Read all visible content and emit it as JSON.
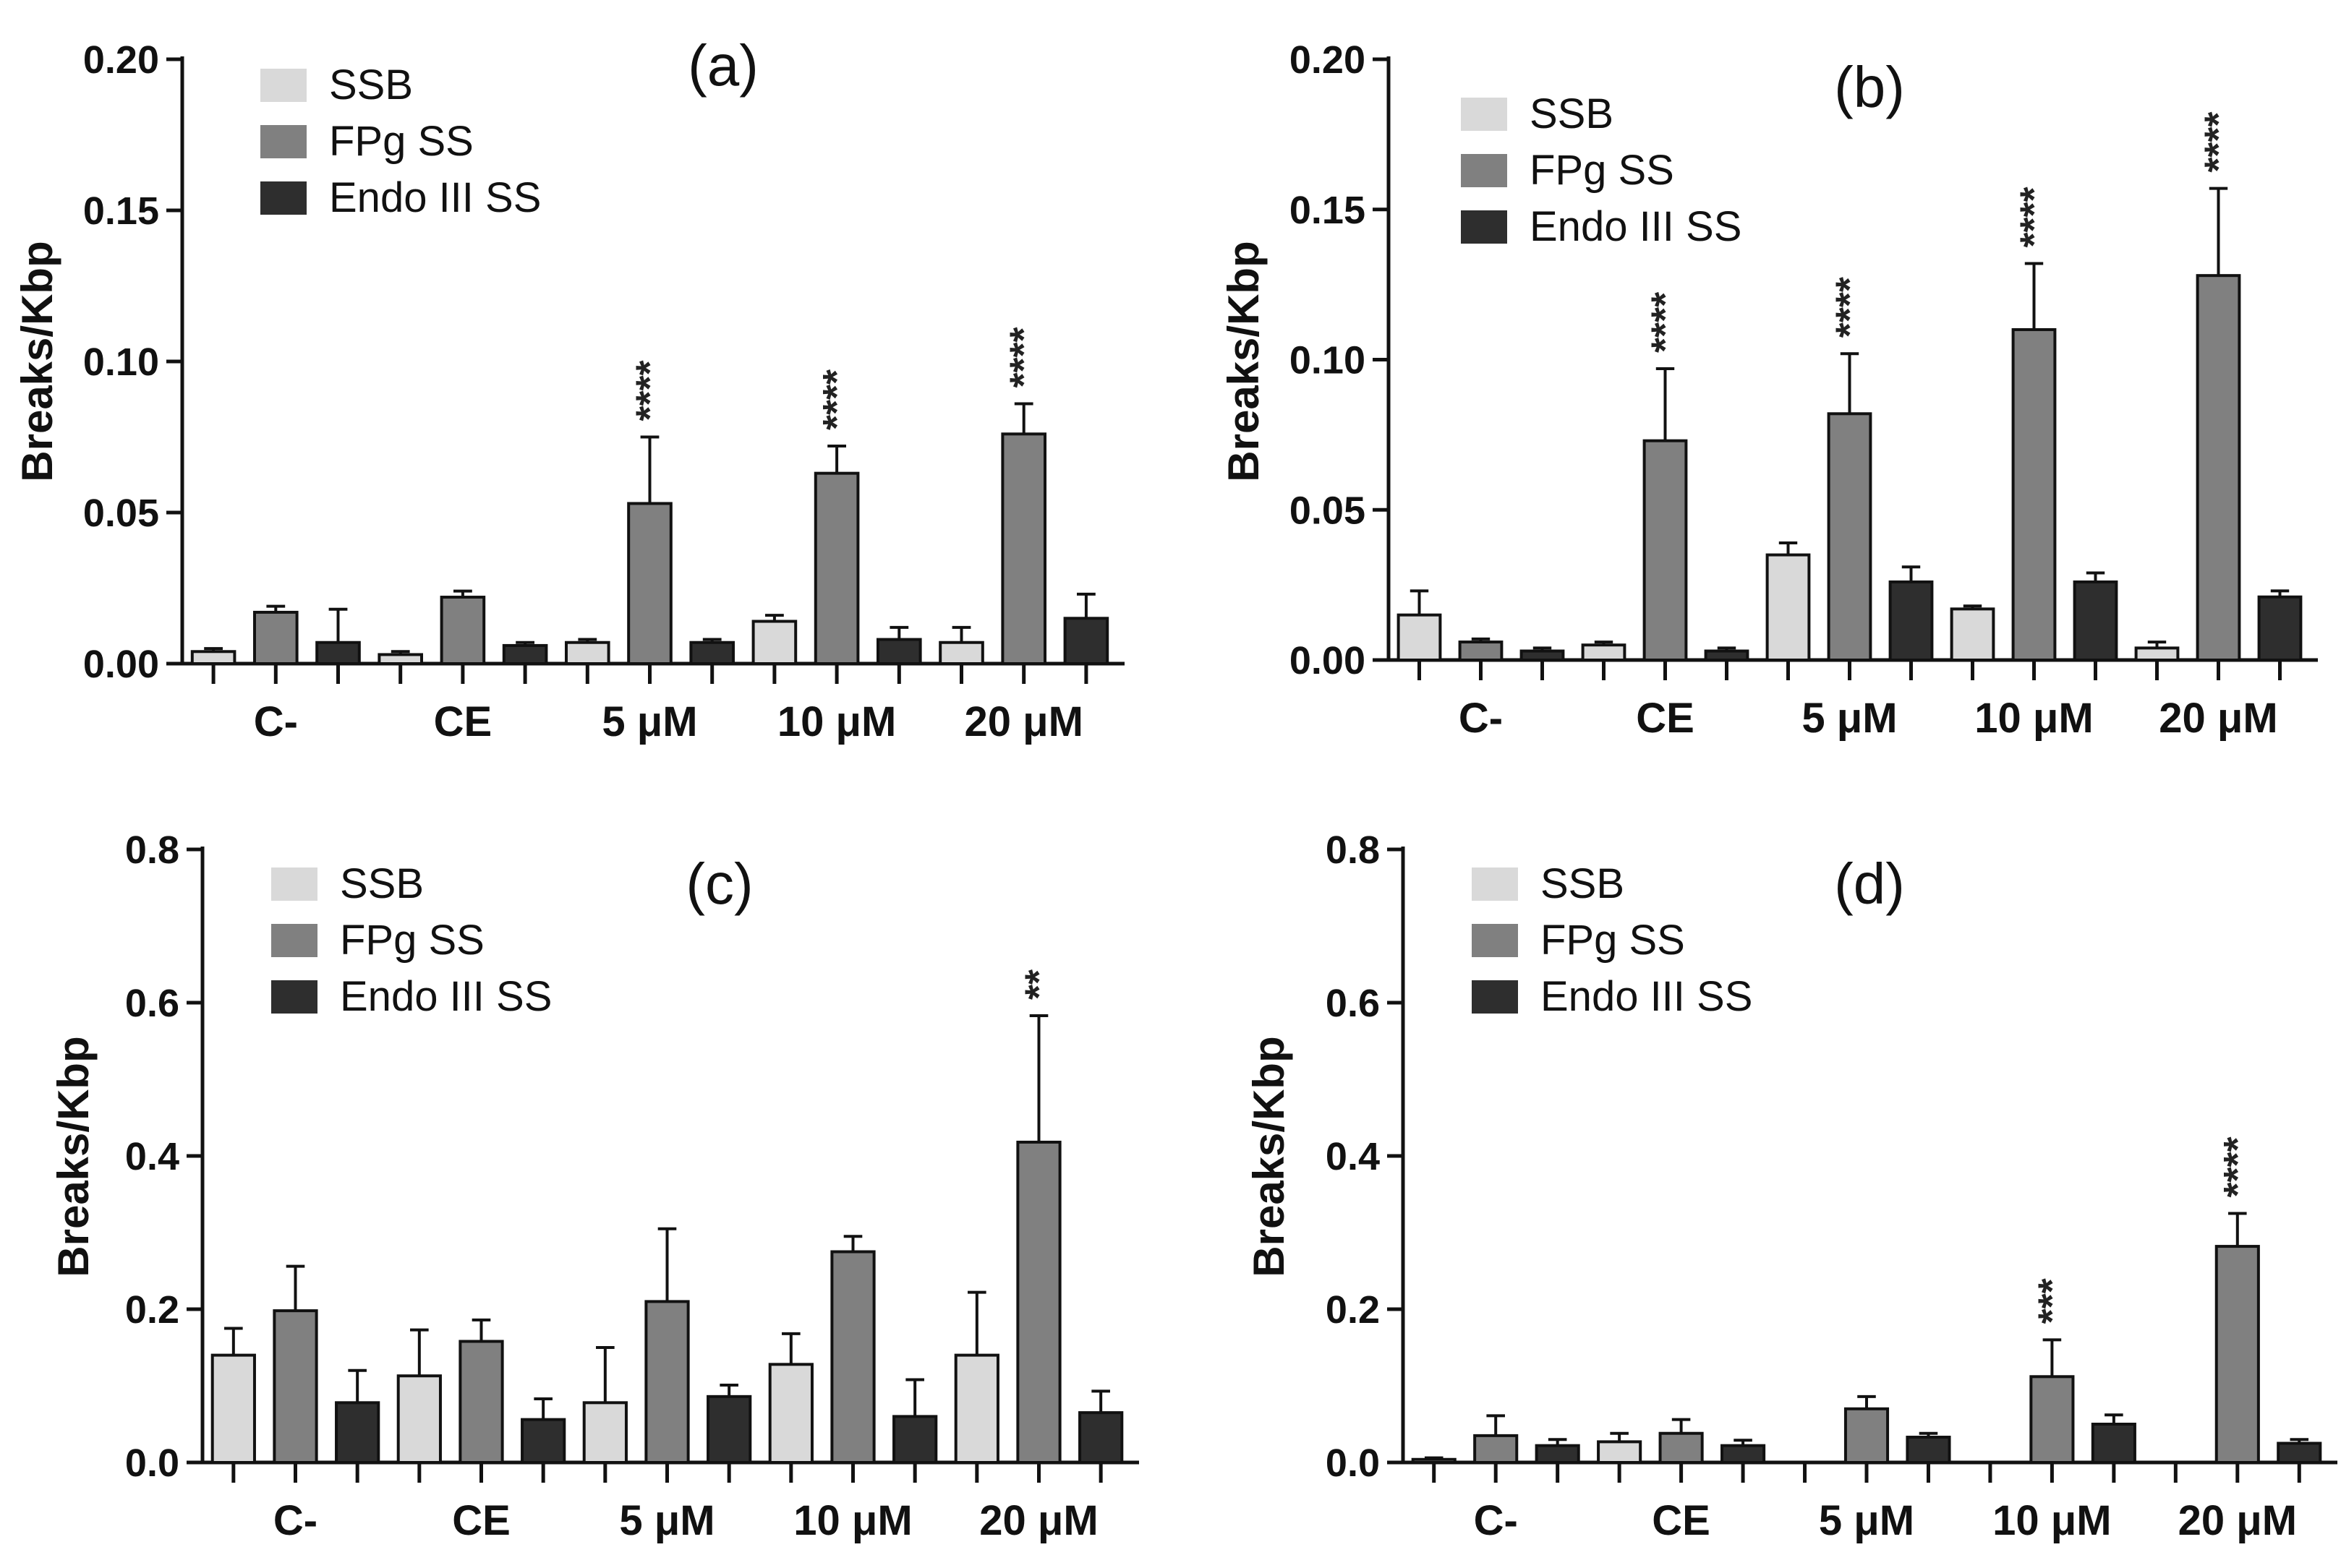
{
  "figure": {
    "colors": {
      "SSB": "#d9d9d9",
      "FPg SS": "#808080",
      "Endo III SS": "#2e2e2e",
      "axis": "#111111"
    }
  },
  "chart_data": [
    {
      "type": "bar",
      "panel": "(a)",
      "ylabel": "Breaks/Kbp",
      "xlabel": "",
      "ylim": [
        0,
        0.2
      ],
      "yticks": [
        "0.00",
        "0.05",
        "0.10",
        "0.15",
        "0.20"
      ],
      "legend": [
        "SSB",
        "FPg SS",
        "Endo III SS"
      ],
      "legend_position": "top-left",
      "categories": [
        "C-",
        "CE",
        "5 μM",
        "10 μM",
        "20 μM"
      ],
      "series": [
        {
          "name": "SSB",
          "values": [
            0.004,
            0.003,
            0.007,
            0.014,
            0.007
          ],
          "errors": [
            0.001,
            0.001,
            0.001,
            0.002,
            0.005
          ]
        },
        {
          "name": "FPg SS",
          "values": [
            0.017,
            0.022,
            0.053,
            0.063,
            0.076
          ],
          "errors": [
            0.002,
            0.002,
            0.022,
            0.009,
            0.01
          ]
        },
        {
          "name": "Endo III SS",
          "values": [
            0.007,
            0.006,
            0.007,
            0.008,
            0.015
          ],
          "errors": [
            0.011,
            0.001,
            0.001,
            0.004,
            0.008
          ]
        }
      ],
      "annotations": [
        {
          "category": "5 μM",
          "series": "FPg SS",
          "text": "****"
        },
        {
          "category": "10 μM",
          "series": "FPg SS",
          "text": "****"
        },
        {
          "category": "20 μM",
          "series": "FPg SS",
          "text": "****"
        }
      ]
    },
    {
      "type": "bar",
      "panel": "(b)",
      "ylabel": "Breaks/Kbp",
      "xlabel": "",
      "ylim": [
        0,
        0.2
      ],
      "yticks": [
        "0.00",
        "0.05",
        "0.10",
        "0.15",
        "0.20"
      ],
      "legend": [
        "SSB",
        "FPg SS",
        "Endo III SS"
      ],
      "legend_position": "top-left",
      "categories": [
        "C-",
        "CE",
        "5 μM",
        "10 μM",
        "20 μM"
      ],
      "series": [
        {
          "name": "SSB",
          "values": [
            0.015,
            0.005,
            0.035,
            0.017,
            0.004
          ],
          "errors": [
            0.008,
            0.001,
            0.004,
            0.001,
            0.002
          ]
        },
        {
          "name": "FPg SS",
          "values": [
            0.006,
            0.073,
            0.082,
            0.11,
            0.128
          ],
          "errors": [
            0.001,
            0.024,
            0.02,
            0.022,
            0.029
          ]
        },
        {
          "name": "Endo III SS",
          "values": [
            0.003,
            0.003,
            0.026,
            0.026,
            0.021
          ],
          "errors": [
            0.001,
            0.001,
            0.005,
            0.003,
            0.002
          ]
        }
      ],
      "annotations": [
        {
          "category": "CE",
          "series": "FPg SS",
          "text": "****"
        },
        {
          "category": "5 μM",
          "series": "FPg SS",
          "text": "****"
        },
        {
          "category": "10 μM",
          "series": "FPg SS",
          "text": "****"
        },
        {
          "category": "20 μM",
          "series": "FPg SS",
          "text": "****"
        }
      ]
    },
    {
      "type": "bar",
      "panel": "(c)",
      "ylabel": "Breaks/Kbp",
      "xlabel": "",
      "ylim": [
        0,
        0.8
      ],
      "yticks": [
        "0.0",
        "0.2",
        "0.4",
        "0.6",
        "0.8"
      ],
      "legend": [
        "SSB",
        "FPg SS",
        "Endo III SS"
      ],
      "legend_position": "top-left",
      "categories": [
        "C-",
        "CE",
        "5 μM",
        "10 μM",
        "20 μM"
      ],
      "series": [
        {
          "name": "SSB",
          "values": [
            0.14,
            0.113,
            0.078,
            0.128,
            0.14
          ],
          "errors": [
            0.035,
            0.06,
            0.072,
            0.04,
            0.082
          ]
        },
        {
          "name": "FPg SS",
          "values": [
            0.198,
            0.158,
            0.21,
            0.275,
            0.418
          ],
          "errors": [
            0.058,
            0.028,
            0.095,
            0.02,
            0.165
          ]
        },
        {
          "name": "Endo III SS",
          "values": [
            0.078,
            0.056,
            0.086,
            0.06,
            0.065
          ],
          "errors": [
            0.042,
            0.027,
            0.015,
            0.048,
            0.028
          ]
        }
      ],
      "annotations": [
        {
          "category": "20 μM",
          "series": "FPg SS",
          "text": "**"
        }
      ]
    },
    {
      "type": "bar",
      "panel": "(d)",
      "ylabel": "Breaks/Kbp",
      "xlabel": "",
      "ylim": [
        0,
        0.8
      ],
      "yticks": [
        "0.0",
        "0.2",
        "0.4",
        "0.6",
        "0.8"
      ],
      "legend": [
        "SSB",
        "FPg SS",
        "Endo III SS"
      ],
      "legend_position": "top-left",
      "categories": [
        "C-",
        "CE",
        "5 μM",
        "10 μM",
        "20 μM"
      ],
      "series": [
        {
          "name": "SSB",
          "values": [
            0.004,
            0.027,
            0.0,
            0.0,
            0.0
          ],
          "errors": [
            0.002,
            0.011,
            0.0,
            0.0,
            0.0
          ]
        },
        {
          "name": "FPg SS",
          "values": [
            0.035,
            0.038,
            0.07,
            0.112,
            0.282
          ],
          "errors": [
            0.026,
            0.018,
            0.016,
            0.048,
            0.043
          ]
        },
        {
          "name": "Endo III SS",
          "values": [
            0.022,
            0.022,
            0.033,
            0.05,
            0.025
          ],
          "errors": [
            0.008,
            0.007,
            0.005,
            0.012,
            0.005
          ]
        }
      ],
      "annotations": [
        {
          "category": "10 μM",
          "series": "FPg SS",
          "text": "***"
        },
        {
          "category": "20 μM",
          "series": "FPg SS",
          "text": "****"
        }
      ]
    }
  ]
}
